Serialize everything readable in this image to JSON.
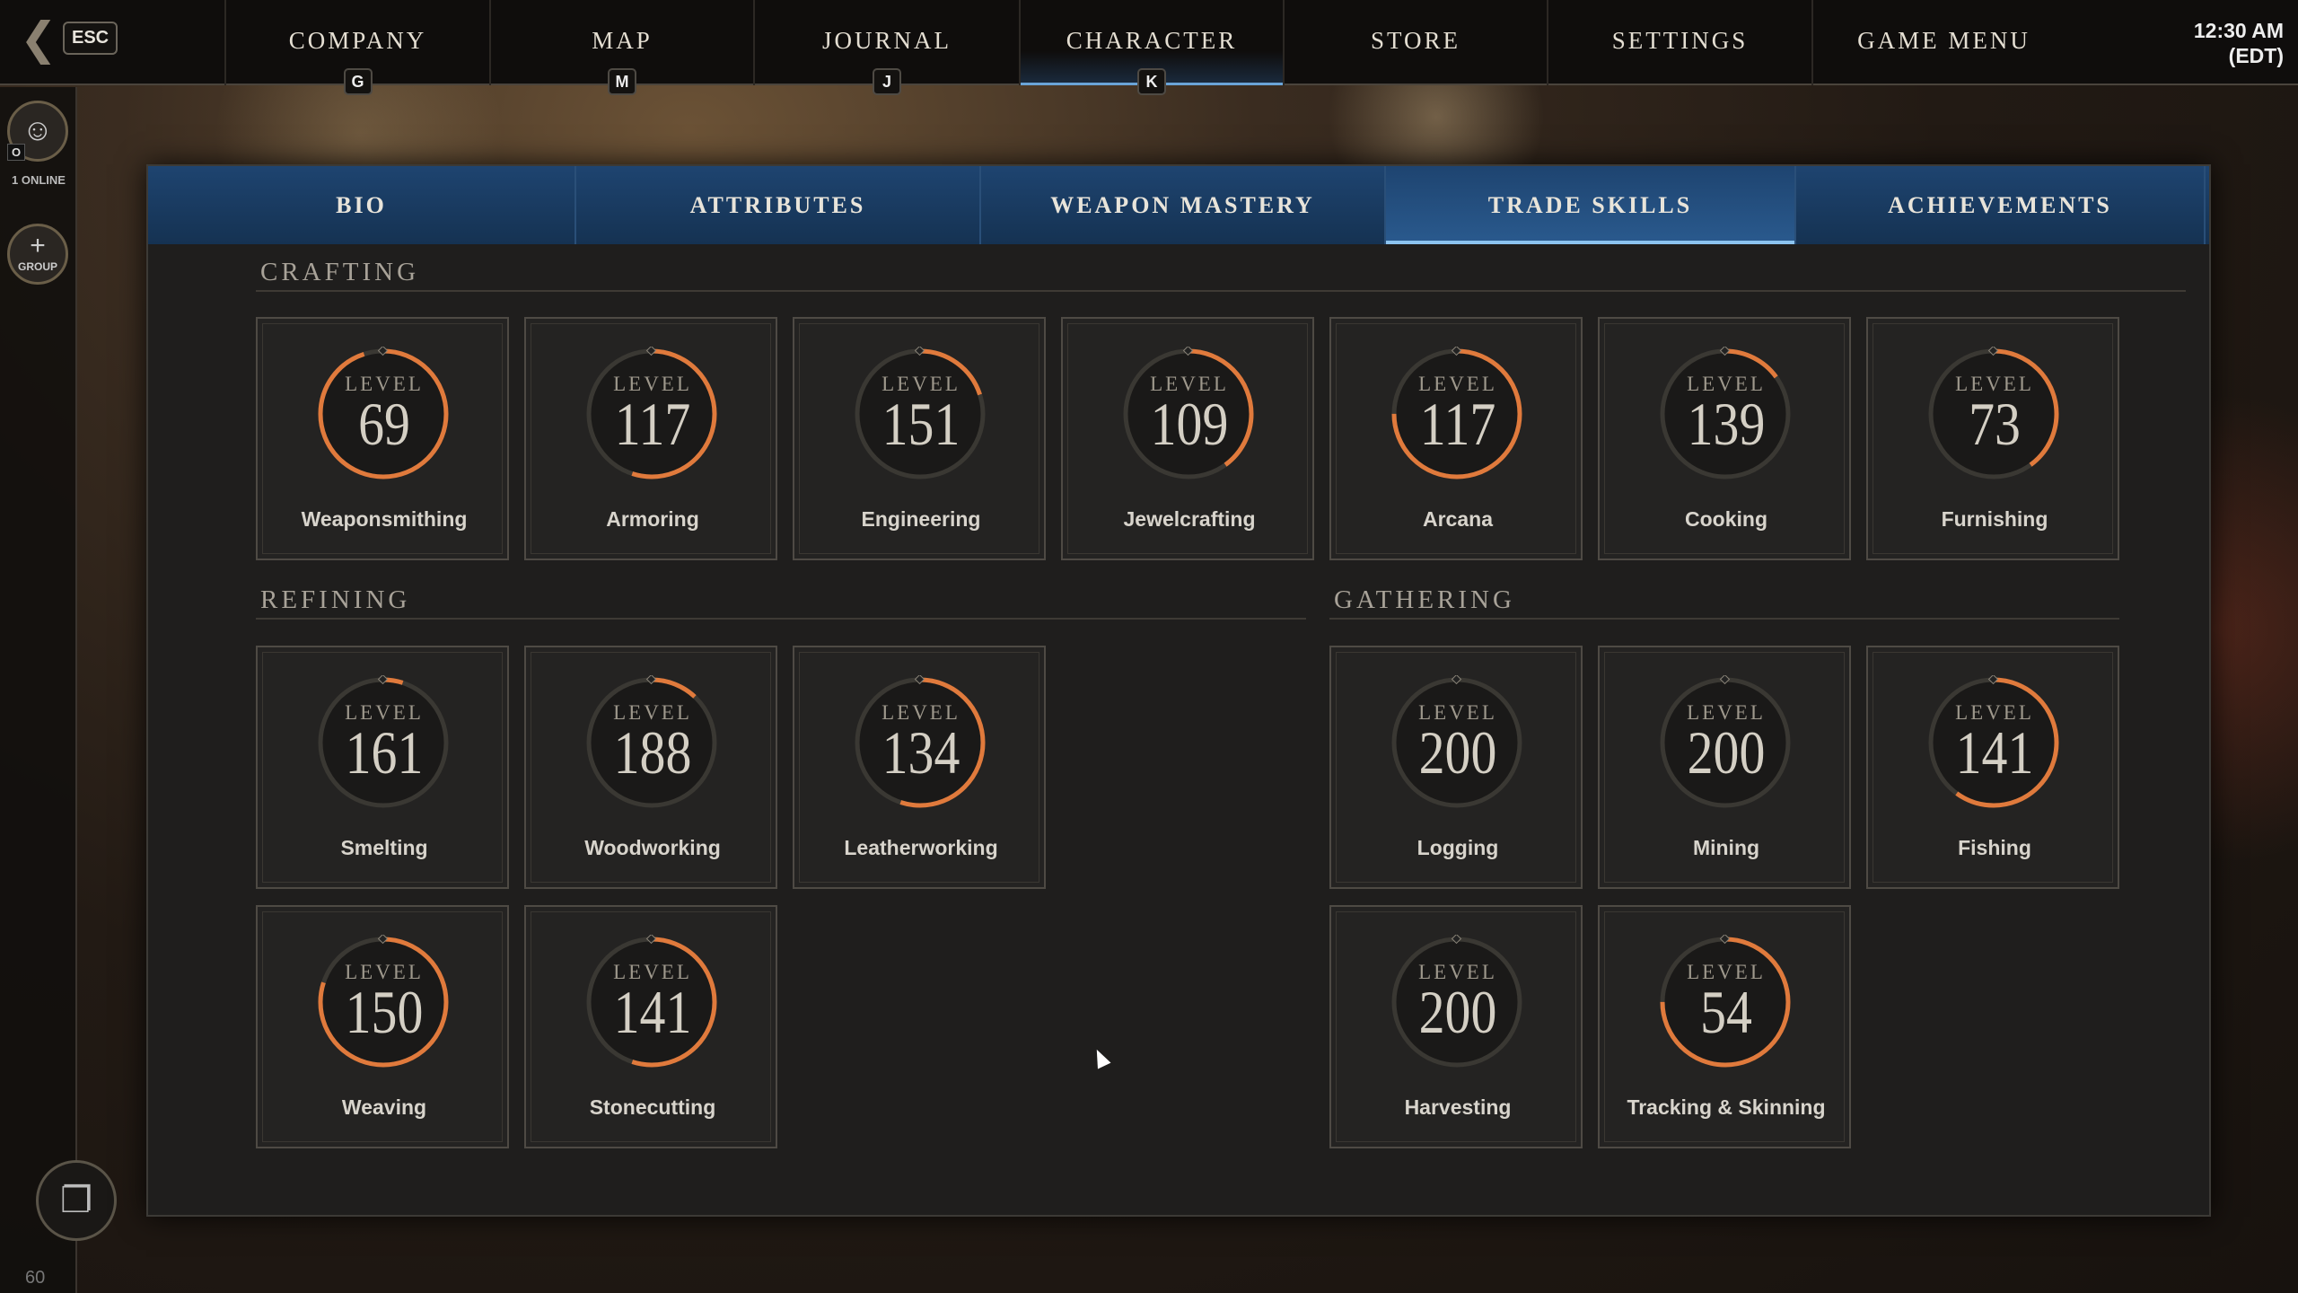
{
  "topbar": {
    "back_key": "ESC",
    "nav": [
      {
        "label": "COMPANY",
        "key": "G"
      },
      {
        "label": "MAP",
        "key": "M"
      },
      {
        "label": "JOURNAL",
        "key": "J"
      },
      {
        "label": "CHARACTER",
        "key": "K",
        "active": true
      },
      {
        "label": "STORE"
      },
      {
        "label": "SETTINGS"
      },
      {
        "label": "GAME MENU"
      }
    ],
    "clock": {
      "time": "12:30 AM",
      "zone": "(EDT)"
    }
  },
  "sidebar": {
    "social_key": "O",
    "online": "1 ONLINE",
    "group": "GROUP"
  },
  "tabs": [
    {
      "label": "BIO"
    },
    {
      "label": "ATTRIBUTES"
    },
    {
      "label": "WEAPON MASTERY"
    },
    {
      "label": "TRADE SKILLS",
      "active": true
    },
    {
      "label": "ACHIEVEMENTS"
    }
  ],
  "level_label": "LEVEL",
  "colors": {
    "progress": "#e07a3c",
    "tab_active": "#2a5a8e"
  },
  "sections": {
    "crafting": {
      "title": "CRAFTING",
      "skills": [
        {
          "name": "Weaponsmithing",
          "level": "69",
          "progress": 0.95
        },
        {
          "name": "Armoring",
          "level": "117",
          "progress": 0.55
        },
        {
          "name": "Engineering",
          "level": "151",
          "progress": 0.2
        },
        {
          "name": "Jewelcrafting",
          "level": "109",
          "progress": 0.4
        },
        {
          "name": "Arcana",
          "level": "117",
          "progress": 0.75
        },
        {
          "name": "Cooking",
          "level": "139",
          "progress": 0.15
        },
        {
          "name": "Furnishing",
          "level": "73",
          "progress": 0.4
        }
      ]
    },
    "refining": {
      "title": "REFINING",
      "skills": [
        {
          "name": "Smelting",
          "level": "161",
          "progress": 0.05
        },
        {
          "name": "Woodworking",
          "level": "188",
          "progress": 0.12
        },
        {
          "name": "Leatherworking",
          "level": "134",
          "progress": 0.55
        },
        {
          "name": "Weaving",
          "level": "150",
          "progress": 0.8
        },
        {
          "name": "Stonecutting",
          "level": "141",
          "progress": 0.55
        }
      ]
    },
    "gathering": {
      "title": "GATHERING",
      "skills": [
        {
          "name": "Logging",
          "level": "200",
          "progress": 0
        },
        {
          "name": "Mining",
          "level": "200",
          "progress": 0
        },
        {
          "name": "Fishing",
          "level": "141",
          "progress": 0.6
        },
        {
          "name": "Harvesting",
          "level": "200",
          "progress": 0
        },
        {
          "name": "Tracking & Skinning",
          "level": "54",
          "progress": 0.75
        }
      ]
    }
  },
  "footer": {
    "fps": "60"
  }
}
